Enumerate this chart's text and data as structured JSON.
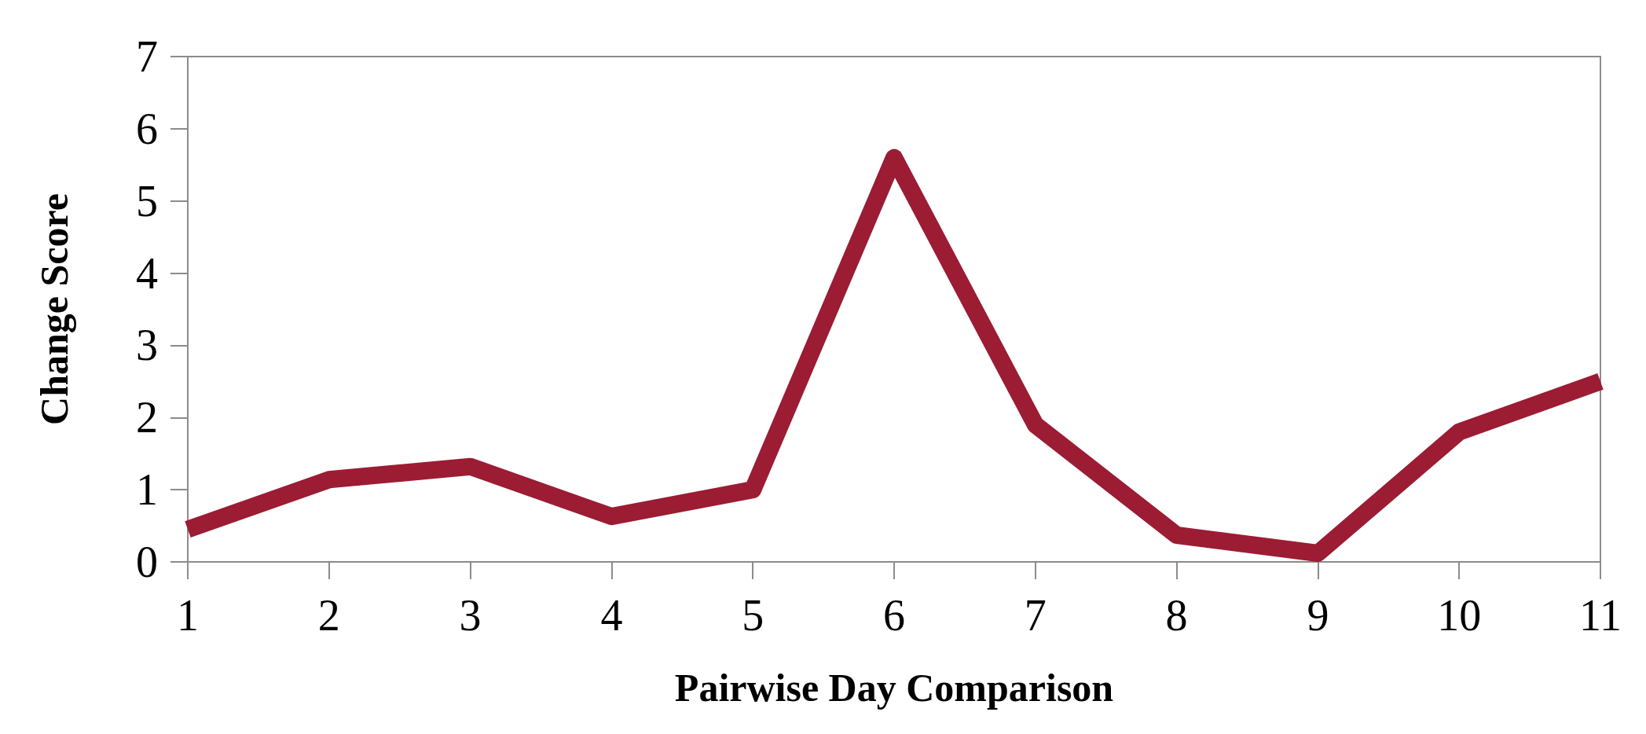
{
  "chart_data": {
    "type": "line",
    "xlabel": "Pairwise Day Comparison",
    "ylabel": "Change Score",
    "categories": [
      "1",
      "2",
      "3",
      "4",
      "5",
      "6",
      "7",
      "8",
      "9",
      "10",
      "11"
    ],
    "series": [
      {
        "color": "#9b1c33",
        "values": [
          0.45,
          1.14,
          1.32,
          0.63,
          1.0,
          5.6,
          1.9,
          0.37,
          0.12,
          1.8,
          2.5
        ]
      }
    ],
    "ylim": [
      0,
      7
    ],
    "yticks": [
      0,
      1,
      2,
      3,
      4,
      5,
      6,
      7
    ],
    "grid": false,
    "marker": "none",
    "line_style": "solid"
  }
}
